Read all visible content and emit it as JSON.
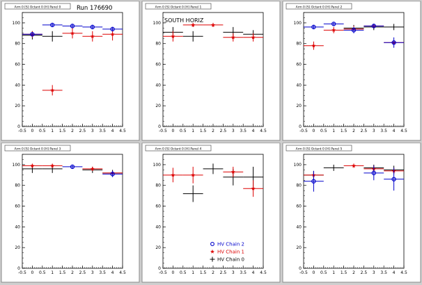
{
  "run_label": "Run 176690",
  "orientation_label": "SOUTH HORIZ",
  "legend": [
    {
      "label": "HV Chain 2",
      "color": "#0000cc",
      "marker": "circle"
    },
    {
      "label": "HV Chain 1",
      "color": "#dd0000",
      "marker": "star"
    },
    {
      "label": "HV Chain 0",
      "color": "#000000",
      "marker": "cross"
    }
  ],
  "chart_data": [
    {
      "type": "scatter",
      "title": "Arm 0 [S] Octant 0 [H] Panel 0",
      "xlim": [
        -0.5,
        4.5
      ],
      "ylim": [
        0,
        110
      ],
      "xticks": [
        -0.5,
        0,
        0.5,
        1,
        1.5,
        2,
        2.5,
        3,
        3.5,
        4,
        4.5
      ],
      "yticks": [
        0,
        20,
        40,
        60,
        80,
        100
      ],
      "series": [
        {
          "chain": 0,
          "color": "#000000",
          "marker": "cross",
          "points": [
            {
              "x": 0,
              "y": 88,
              "ex": 0.5,
              "ey": 4
            },
            {
              "x": 1,
              "y": 87,
              "ex": 0.5,
              "ey": 5
            }
          ]
        },
        {
          "chain": 1,
          "color": "#dd0000",
          "marker": "star",
          "points": [
            {
              "x": 0,
              "y": 89,
              "ex": 0.5,
              "ey": 3
            },
            {
              "x": 1,
              "y": 35,
              "ex": 0.5,
              "ey": 5
            },
            {
              "x": 2,
              "y": 90,
              "ex": 0.5,
              "ey": 5
            },
            {
              "x": 3,
              "y": 87,
              "ex": 0.5,
              "ey": 5
            },
            {
              "x": 4,
              "y": 89,
              "ex": 0.5,
              "ey": 6
            }
          ]
        },
        {
          "chain": 2,
          "color": "#0000cc",
          "marker": "circle",
          "points": [
            {
              "x": 0,
              "y": 89,
              "ex": 0.5,
              "ey": 2
            },
            {
              "x": 1,
              "y": 98,
              "ex": 0.5,
              "ey": 2
            },
            {
              "x": 2,
              "y": 97,
              "ex": 0.5,
              "ey": 2
            },
            {
              "x": 3,
              "y": 96,
              "ex": 0.5,
              "ey": 2
            },
            {
              "x": 4,
              "y": 94,
              "ex": 0.5,
              "ey": 2
            }
          ]
        }
      ]
    },
    {
      "type": "scatter",
      "title": "Arm 0 [S] Octant 0 [H] Panel 1",
      "xlim": [
        -0.5,
        4.5
      ],
      "ylim": [
        0,
        110
      ],
      "xticks": [
        -0.5,
        0,
        0.5,
        1,
        1.5,
        2,
        2.5,
        3,
        3.5,
        4,
        4.5
      ],
      "yticks": [
        0,
        20,
        40,
        60,
        80,
        100
      ],
      "series": [
        {
          "chain": 0,
          "color": "#000000",
          "marker": "cross",
          "points": [
            {
              "x": 0,
              "y": 91,
              "ex": 0.5,
              "ey": 5
            },
            {
              "x": 1,
              "y": 87,
              "ex": 0.5,
              "ey": 5
            },
            {
              "x": 3,
              "y": 91,
              "ex": 0.5,
              "ey": 5
            },
            {
              "x": 4,
              "y": 89,
              "ex": 0.5,
              "ey": 4
            }
          ]
        },
        {
          "chain": 1,
          "color": "#dd0000",
          "marker": "star",
          "points": [
            {
              "x": 0,
              "y": 87,
              "ex": 0.5,
              "ey": 5
            },
            {
              "x": 1,
              "y": 98,
              "ex": 0.5,
              "ey": 2
            },
            {
              "x": 2,
              "y": 98,
              "ex": 0.5,
              "ey": 2
            },
            {
              "x": 3,
              "y": 86,
              "ex": 0.5,
              "ey": 4
            },
            {
              "x": 4,
              "y": 86,
              "ex": 0.5,
              "ey": 4
            }
          ]
        }
      ]
    },
    {
      "type": "scatter",
      "title": "Arm 0 [S] Octant 0 [H] Panel 2",
      "xlim": [
        -0.5,
        4.5
      ],
      "ylim": [
        0,
        110
      ],
      "xticks": [
        -0.5,
        0,
        0.5,
        1,
        1.5,
        2,
        2.5,
        3,
        3.5,
        4,
        4.5
      ],
      "yticks": [
        0,
        20,
        40,
        60,
        80,
        100
      ],
      "series": [
        {
          "chain": 0,
          "color": "#000000",
          "marker": "cross",
          "points": [
            {
              "x": 2,
              "y": 95,
              "ex": 0.5,
              "ey": 3
            },
            {
              "x": 3,
              "y": 96,
              "ex": 0.5,
              "ey": 3
            },
            {
              "x": 4,
              "y": 96,
              "ex": 0.5,
              "ey": 3
            }
          ]
        },
        {
          "chain": 1,
          "color": "#dd0000",
          "marker": "star",
          "points": [
            {
              "x": 0,
              "y": 78,
              "ex": 0.5,
              "ey": 4
            },
            {
              "x": 1,
              "y": 93,
              "ex": 0.5,
              "ey": 3
            },
            {
              "x": 2,
              "y": 94,
              "ex": 0.5,
              "ey": 3
            },
            {
              "x": 3,
              "y": 97,
              "ex": 0.5,
              "ey": 2
            },
            {
              "x": 4,
              "y": 81,
              "ex": 0.5,
              "ey": 2
            }
          ]
        },
        {
          "chain": 2,
          "color": "#0000cc",
          "marker": "circle",
          "points": [
            {
              "x": 0,
              "y": 96,
              "ex": 0.5,
              "ey": 2
            },
            {
              "x": 1,
              "y": 99,
              "ex": 0.5,
              "ey": 2
            },
            {
              "x": 2,
              "y": 93,
              "ex": 0.5,
              "ey": 3
            },
            {
              "x": 3,
              "y": 97,
              "ex": 0.5,
              "ey": 2
            },
            {
              "x": 4,
              "y": 81,
              "ex": 0.5,
              "ey": 5
            }
          ]
        }
      ]
    },
    {
      "type": "scatter",
      "title": "Arm 0 [S] Octant 0 [H] Panel 3",
      "xlim": [
        -0.5,
        4.5
      ],
      "ylim": [
        0,
        110
      ],
      "xticks": [
        -0.5,
        0,
        0.5,
        1,
        1.5,
        2,
        2.5,
        3,
        3.5,
        4,
        4.5
      ],
      "yticks": [
        0,
        20,
        40,
        60,
        80,
        100
      ],
      "series": [
        {
          "chain": 0,
          "color": "#000000",
          "marker": "cross",
          "points": [
            {
              "x": 0,
              "y": 96,
              "ex": 0.5,
              "ey": 4
            },
            {
              "x": 1,
              "y": 96,
              "ex": 0.5,
              "ey": 4
            },
            {
              "x": 3,
              "y": 95,
              "ex": 0.5,
              "ey": 3
            },
            {
              "x": 4,
              "y": 92,
              "ex": 0.5,
              "ey": 3
            }
          ]
        },
        {
          "chain": 1,
          "color": "#dd0000",
          "marker": "star",
          "points": [
            {
              "x": 0,
              "y": 99,
              "ex": 0.5,
              "ey": 2
            },
            {
              "x": 1,
              "y": 99,
              "ex": 0.5,
              "ey": 2
            },
            {
              "x": 3,
              "y": 96,
              "ex": 0.5,
              "ey": 2
            },
            {
              "x": 4,
              "y": 92,
              "ex": 0.5,
              "ey": 2
            }
          ]
        },
        {
          "chain": 2,
          "color": "#0000cc",
          "marker": "circle",
          "points": [
            {
              "x": 2,
              "y": 98,
              "ex": 0.5,
              "ey": 2
            },
            {
              "x": 4,
              "y": 91,
              "ex": 0.5,
              "ey": 3
            }
          ]
        }
      ]
    },
    {
      "type": "scatter",
      "title": "Arm 0 [S] Octant 0 [H] Panel 4",
      "xlim": [
        -0.5,
        4.5
      ],
      "ylim": [
        0,
        110
      ],
      "xticks": [
        -0.5,
        0,
        0.5,
        1,
        1.5,
        2,
        2.5,
        3,
        3.5,
        4,
        4.5
      ],
      "yticks": [
        0,
        20,
        40,
        60,
        80,
        100
      ],
      "series": [
        {
          "chain": 0,
          "color": "#000000",
          "marker": "cross",
          "points": [
            {
              "x": 1,
              "y": 72,
              "ex": 0.5,
              "ey": 8
            },
            {
              "x": 2,
              "y": 96,
              "ex": 0.5,
              "ey": 5
            },
            {
              "x": 3,
              "y": 88,
              "ex": 0.5,
              "ey": 8
            },
            {
              "x": 4,
              "y": 88,
              "ex": 0.5,
              "ey": 10
            }
          ]
        },
        {
          "chain": 1,
          "color": "#dd0000",
          "marker": "star",
          "points": [
            {
              "x": 0,
              "y": 90,
              "ex": 0.5,
              "ey": 7
            },
            {
              "x": 1,
              "y": 90,
              "ex": 0.5,
              "ey": 8
            },
            {
              "x": 3,
              "y": 93,
              "ex": 0.5,
              "ey": 5
            },
            {
              "x": 4,
              "y": 77,
              "ex": 0.5,
              "ey": 8
            }
          ]
        }
      ]
    },
    {
      "type": "scatter",
      "title": "Arm 0 [S] Octant 0 [H] Panel 5",
      "xlim": [
        -0.5,
        4.5
      ],
      "ylim": [
        0,
        110
      ],
      "xticks": [
        -0.5,
        0,
        0.5,
        1,
        1.5,
        2,
        2.5,
        3,
        3.5,
        4,
        4.5
      ],
      "yticks": [
        0,
        20,
        40,
        60,
        80,
        100
      ],
      "series": [
        {
          "chain": 0,
          "color": "#000000",
          "marker": "cross",
          "points": [
            {
              "x": 0,
              "y": 90,
              "ex": 0.5,
              "ey": 4
            },
            {
              "x": 1,
              "y": 97,
              "ex": 0.5,
              "ey": 3
            },
            {
              "x": 3,
              "y": 97,
              "ex": 0.5,
              "ey": 3
            },
            {
              "x": 4,
              "y": 95,
              "ex": 0.5,
              "ey": 4
            }
          ]
        },
        {
          "chain": 1,
          "color": "#dd0000",
          "marker": "star",
          "points": [
            {
              "x": 0,
              "y": 90,
              "ex": 0.5,
              "ey": 3
            },
            {
              "x": 2,
              "y": 99,
              "ex": 0.5,
              "ey": 2
            },
            {
              "x": 3,
              "y": 96,
              "ex": 0.5,
              "ey": 3
            },
            {
              "x": 4,
              "y": 94,
              "ex": 0.5,
              "ey": 3
            }
          ]
        },
        {
          "chain": 2,
          "color": "#0000cc",
          "marker": "circle",
          "points": [
            {
              "x": 0,
              "y": 84,
              "ex": 0.5,
              "ey": 10
            },
            {
              "x": 3,
              "y": 92,
              "ex": 0.5,
              "ey": 7
            },
            {
              "x": 4,
              "y": 86,
              "ex": 0.5,
              "ey": 11
            }
          ]
        }
      ]
    }
  ]
}
